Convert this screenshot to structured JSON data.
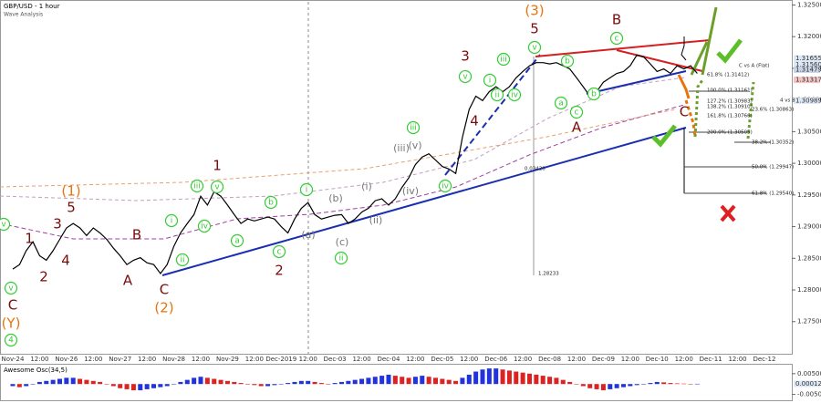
{
  "chart_data": {
    "type": "line",
    "title": "GBP/USD - 1 hour",
    "subtitle": "Wave Analysis",
    "categories": [
      "Nov-24",
      null,
      null,
      null,
      "12:00",
      null,
      null,
      null,
      "Nov-26",
      null,
      null,
      null,
      "12:00",
      null,
      null,
      null,
      "Nov-27",
      null,
      null,
      null,
      "12:00",
      null,
      null,
      null,
      "Nov-28",
      null,
      null,
      null,
      "12:00",
      null,
      null,
      null,
      "Nov-29",
      null,
      null,
      null,
      "12:00",
      null,
      null,
      null,
      "Dec-2019",
      null,
      null,
      null,
      "12:00",
      null,
      null,
      null,
      "Dec-03",
      null,
      null,
      null,
      "12:00",
      null,
      null,
      null,
      "Dec-04",
      null,
      null,
      null,
      "12:00",
      null,
      null,
      null,
      "Dec-05",
      null,
      null,
      null,
      "12:00",
      null,
      null,
      null,
      "Dec-06",
      null,
      null,
      null,
      "12:00",
      null,
      null,
      null,
      "Dec-08",
      null,
      null,
      null,
      "12:00",
      null,
      null,
      null,
      "Dec-09",
      null,
      null,
      null,
      "12:00",
      null,
      null,
      null,
      "Dec-10",
      null,
      null,
      null,
      "12:00",
      null,
      null,
      null,
      "Dec-11",
      null,
      null,
      null,
      "12:00",
      null,
      null,
      null,
      "Dec-12"
    ],
    "series": [
      {
        "color": "#000000",
        "values": [
          1.2833,
          1.284,
          1.2862,
          1.2876,
          1.2854,
          1.2847,
          1.2862,
          1.288,
          1.2898,
          1.2905,
          1.2898,
          1.2886,
          1.2898,
          1.289,
          1.288,
          1.2866,
          1.2854,
          1.284,
          1.2847,
          1.2851,
          1.2843,
          1.284,
          1.2826,
          1.284,
          1.2869,
          1.289,
          1.2905,
          1.2919,
          1.2948,
          1.2934,
          1.2955,
          1.2948,
          1.2934,
          1.2919,
          1.2905,
          1.2912,
          1.2909,
          1.2912,
          1.2915,
          1.2912,
          1.29,
          1.289,
          1.2912,
          1.2929,
          1.2938,
          1.2919,
          1.2912,
          1.2915,
          1.2918,
          1.2919,
          1.2905,
          1.2912,
          1.2923,
          1.2929,
          1.2941,
          1.2944,
          1.2934,
          1.2944,
          1.2962,
          1.2977,
          1.2998,
          1.301,
          1.3015,
          1.3005,
          1.2995,
          1.2991,
          1.2984,
          1.3041,
          1.3085,
          1.3106,
          1.3099,
          1.3113,
          1.3121,
          1.3113,
          1.3121,
          1.3135,
          1.3145,
          1.3154,
          1.3159,
          1.3159,
          1.3157,
          1.3159,
          1.3154,
          1.3149,
          1.3135,
          1.3121,
          1.3106,
          1.3113,
          1.3128,
          1.3135,
          1.3142,
          1.3145,
          1.3154,
          1.3171,
          1.3168,
          1.3157,
          1.3145,
          1.3149,
          1.3142,
          1.3154,
          1.3149,
          1.3154,
          1.3142,
          null,
          null,
          null,
          null,
          null,
          null,
          null,
          null,
          null,
          null
        ]
      }
    ],
    "ylim": [
      1.2705,
      1.3255
    ],
    "yticks": [
      {
        "value": 1.325,
        "label": "1.32500"
      },
      {
        "value": 1.32,
        "label": "1.32000"
      },
      {
        "value": 1.315,
        "label": "1.31500"
      },
      {
        "value": 1.31,
        "label": "1.31000"
      },
      {
        "value": 1.305,
        "label": "1.30500"
      },
      {
        "value": 1.3,
        "label": "1.30000"
      },
      {
        "value": 1.295,
        "label": "1.29500"
      },
      {
        "value": 1.29,
        "label": "1.29000"
      },
      {
        "value": 1.285,
        "label": "1.28500"
      },
      {
        "value": 1.28,
        "label": "1.28000"
      },
      {
        "value": 1.275,
        "label": "1.27500"
      }
    ],
    "price_tags": [
      {
        "value": 1.31655,
        "label": "1.31655",
        "color": "#dde8f6"
      },
      {
        "value": 1.3156,
        "label": "1.31560",
        "color": "#dde8f6"
      },
      {
        "value": 1.31479,
        "label": "1.31479",
        "color": "#c8d4e6"
      },
      {
        "value": 1.31317,
        "label": "1.31317",
        "color": "#f3c4c4"
      },
      {
        "value": 1.30989,
        "label": "1.30989",
        "color": "#dde8f6"
      }
    ],
    "oscillator": {
      "title": "Awesome Osc(34,5)",
      "up_color": "#2233dd",
      "down_color": "#dd2222",
      "values": [
        -0.001,
        -0.0015,
        -0.001,
        0,
        0.001,
        0.0015,
        0.002,
        0.0025,
        0.003,
        0.003,
        0.0025,
        0.002,
        0.0015,
        0.001,
        0,
        -0.001,
        -0.002,
        -0.0025,
        -0.003,
        -0.003,
        -0.0025,
        -0.002,
        -0.0015,
        -0.001,
        0,
        0.001,
        0.002,
        0.003,
        0.0035,
        0.003,
        0.0025,
        0.002,
        0.0015,
        0.001,
        0.0005,
        0,
        -0.0005,
        -0.001,
        -0.001,
        -0.0005,
        0,
        0.0005,
        0.001,
        0.0015,
        0.0015,
        0.001,
        0.0005,
        0,
        0.0005,
        0.001,
        0.0015,
        0.002,
        0.0025,
        0.003,
        0.0035,
        0.004,
        0.0045,
        0.004,
        0.0035,
        0.003,
        0.0035,
        0.004,
        0.0035,
        0.003,
        0.0025,
        0.002,
        0.0015,
        0.003,
        0.0045,
        0.006,
        0.007,
        0.0075,
        0.0075,
        0.007,
        0.0065,
        0.006,
        0.0055,
        0.005,
        0.0045,
        0.004,
        0.0035,
        0.003,
        0.002,
        0.001,
        0,
        -0.001,
        -0.002,
        -0.0025,
        -0.003,
        -0.0025,
        -0.002,
        -0.0015,
        -0.001,
        -0.0005,
        0,
        0.0005,
        0.001,
        0.0008,
        0.0005,
        0.0003,
        0.0002,
        0.0001,
        0.00012,
        null,
        null,
        null,
        null,
        null,
        null,
        null,
        null,
        null,
        null
      ],
      "ylim": [
        -0.0078,
        0.0093
      ],
      "yticks": [
        {
          "value": 0.005,
          "label": "0.00500"
        },
        {
          "value": -0.005,
          "label": "-0.00500"
        }
      ],
      "current": {
        "value": 0.00012,
        "label": "0.00012"
      }
    },
    "wave_labels": {
      "orange": {
        "color": "#e8730c",
        "labels": [
          "(Y)",
          "(1)",
          "(2)",
          "(3)"
        ]
      },
      "red": {
        "color": "#7a0b0b",
        "labels": [
          "C",
          "1",
          "2",
          "3",
          "4",
          "5",
          "B",
          "A",
          "C",
          "1",
          "2",
          "3",
          "4",
          "5",
          "A",
          "B",
          "C"
        ]
      },
      "green": {
        "color": "#33cc33",
        "labels": [
          "4",
          "v",
          "v",
          "ii",
          "i",
          "iii",
          "iv",
          "v",
          "a",
          "b",
          "c",
          "i",
          "ii",
          "iii",
          "iv",
          "v",
          "i",
          "ii",
          "iii",
          "iv",
          "v",
          "a",
          "b",
          "c",
          "b",
          "c"
        ]
      },
      "gray": {
        "color": "#777777",
        "labels": [
          "(a)",
          "(b)",
          "(c)",
          "(i)",
          "(ii)",
          "(iii)",
          "(iv)",
          "(v)"
        ]
      }
    },
    "notes": [
      "C vs A (Flat)",
      "4 vs 3",
      "61.8% (1.31412)",
      "100.0% (1.31161)",
      "127.2% (1.30983)",
      "138.2% (1.30910)",
      "161.8% (1.30766)",
      "200.0% (1.30505)",
      "23.6% (1.30863)",
      "38.2% (1.30352)",
      "50.0% (1.29947)",
      "61.8% (1.29540)",
      "0.03420",
      "1.28233"
    ]
  }
}
